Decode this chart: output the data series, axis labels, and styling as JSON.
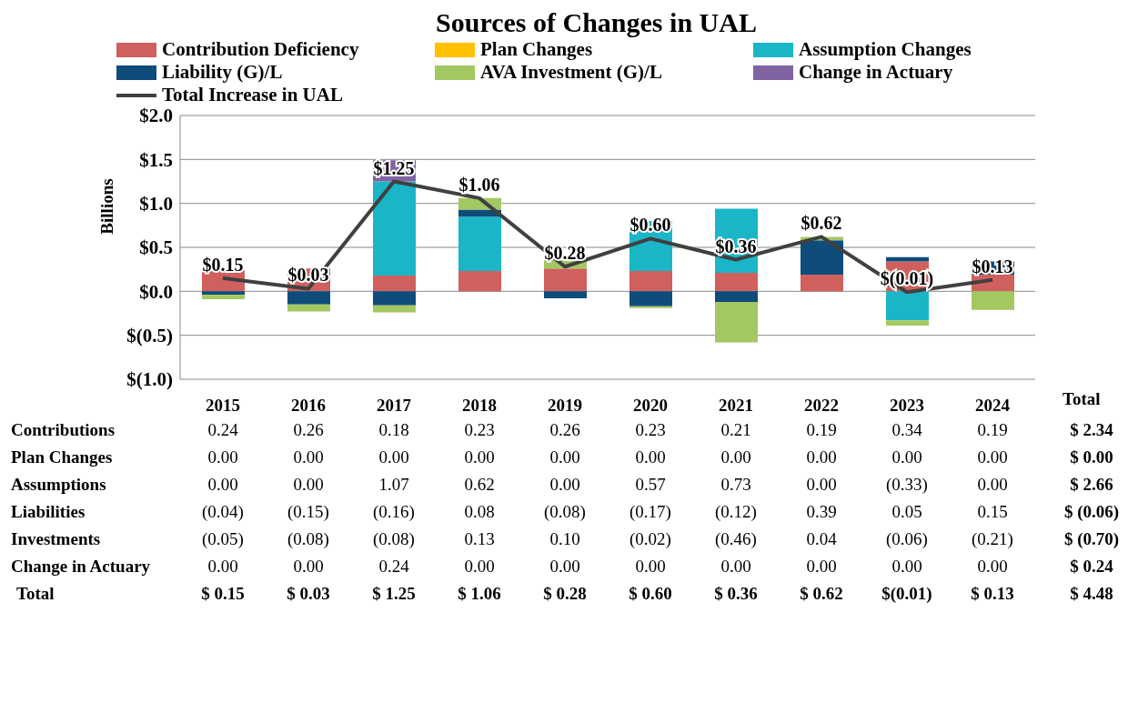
{
  "chart_data": {
    "type": "bar",
    "stacked": true,
    "title": "Sources of Changes in UAL",
    "ylabel": "Billions",
    "categories": [
      "2015",
      "2016",
      "2017",
      "2018",
      "2019",
      "2020",
      "2021",
      "2022",
      "2023",
      "2024"
    ],
    "series": [
      {
        "name": "Contribution Deficiency",
        "color": "#d0605e",
        "values": [
          0.24,
          0.26,
          0.18,
          0.23,
          0.26,
          0.23,
          0.21,
          0.19,
          0.34,
          0.19
        ],
        "value_labels": [
          "0.24",
          "0.26",
          "0.18",
          "0.23",
          "0.26",
          "0.23",
          "0.21",
          "0.19",
          "0.34",
          "0.19"
        ]
      },
      {
        "name": "Plan Changes",
        "color": "#ffc000",
        "values": [
          0,
          0,
          0,
          0,
          0,
          0,
          0,
          0,
          0,
          0
        ],
        "value_labels": [
          "0.00",
          "0.00",
          "0.00",
          "0.00",
          "0.00",
          "0.00",
          "0.00",
          "0.00",
          "0.00",
          "0.00"
        ]
      },
      {
        "name": "Assumption Changes",
        "color": "#1ab6c8",
        "values": [
          0,
          0,
          1.07,
          0.62,
          0,
          0.57,
          0.73,
          0,
          -0.33,
          0
        ],
        "value_labels": [
          "0.00",
          "0.00",
          "1.07",
          "0.62",
          "0.00",
          "0.57",
          "0.73",
          "0.00",
          "(0.33)",
          "0.00"
        ]
      },
      {
        "name": "Liability (G)/L",
        "color": "#0e4c7a",
        "values": [
          -0.04,
          -0.15,
          -0.16,
          0.08,
          -0.08,
          -0.17,
          -0.12,
          0.39,
          0.05,
          0.15
        ],
        "value_labels": [
          "(0.04)",
          "(0.15)",
          "(0.16)",
          "0.08",
          "(0.08)",
          "(0.17)",
          "(0.12)",
          "0.39",
          "0.05",
          "0.15"
        ]
      },
      {
        "name": "AVA Investment (G)/L",
        "color": "#a3c862",
        "values": [
          -0.05,
          -0.08,
          -0.08,
          0.13,
          0.1,
          -0.02,
          -0.46,
          0.04,
          -0.06,
          -0.21
        ],
        "value_labels": [
          "(0.05)",
          "(0.08)",
          "(0.08)",
          "0.13",
          "0.10",
          "(0.02)",
          "(0.46)",
          "0.04",
          "(0.06)",
          "(0.21)"
        ]
      },
      {
        "name": "Change in Actuary",
        "color": "#8064a2",
        "values": [
          0,
          0,
          0.24,
          0,
          0,
          0,
          0,
          0,
          0,
          0
        ],
        "value_labels": [
          "0.00",
          "0.00",
          "0.24",
          "0.00",
          "0.00",
          "0.00",
          "0.00",
          "0.00",
          "0.00",
          "0.00"
        ]
      },
      {
        "name": "Total Increase in UAL",
        "type": "line",
        "color": "#404040",
        "marker": "none",
        "values": [
          0.15,
          0.03,
          1.25,
          1.06,
          0.28,
          0.6,
          0.36,
          0.62,
          -0.01,
          0.13
        ],
        "value_labels": [
          "$0.15",
          "$0.03",
          "$1.25",
          "$1.06",
          "$0.28",
          "$0.60",
          "$0.36",
          "$0.62",
          "$(0.01)",
          "$0.13"
        ]
      }
    ],
    "ylim": [
      -1,
      2
    ],
    "yticks": [
      {
        "value": -1,
        "label": "$(1.0)"
      },
      {
        "value": -0.5,
        "label": "$(0.5)"
      },
      {
        "value": 0,
        "label": "$0.0"
      },
      {
        "value": 0.5,
        "label": "$0.5"
      },
      {
        "value": 1,
        "label": "$1.0"
      },
      {
        "value": 1.5,
        "label": "$1.5"
      },
      {
        "value": 2,
        "label": "$2.0"
      }
    ],
    "grid": "y",
    "legend": "top",
    "annotations": [
      "Total",
      "Contributions",
      "$ 2.34",
      "Plan Changes",
      "$ 0.00",
      "Assumptions",
      "$ 2.66",
      "Liabilities",
      "$ (0.06)",
      "Investments",
      "$ (0.70)",
      "Change in Actuary",
      "$ 0.24",
      "Total",
      "$ 4.48",
      "$ 0.15",
      "$ 0.03",
      "$ 1.25",
      "$ 1.06",
      "$ 0.28",
      "$ 0.60",
      "$ 0.36",
      "$ 0.62",
      "$(0.01)",
      "$ 0.13"
    ]
  }
}
